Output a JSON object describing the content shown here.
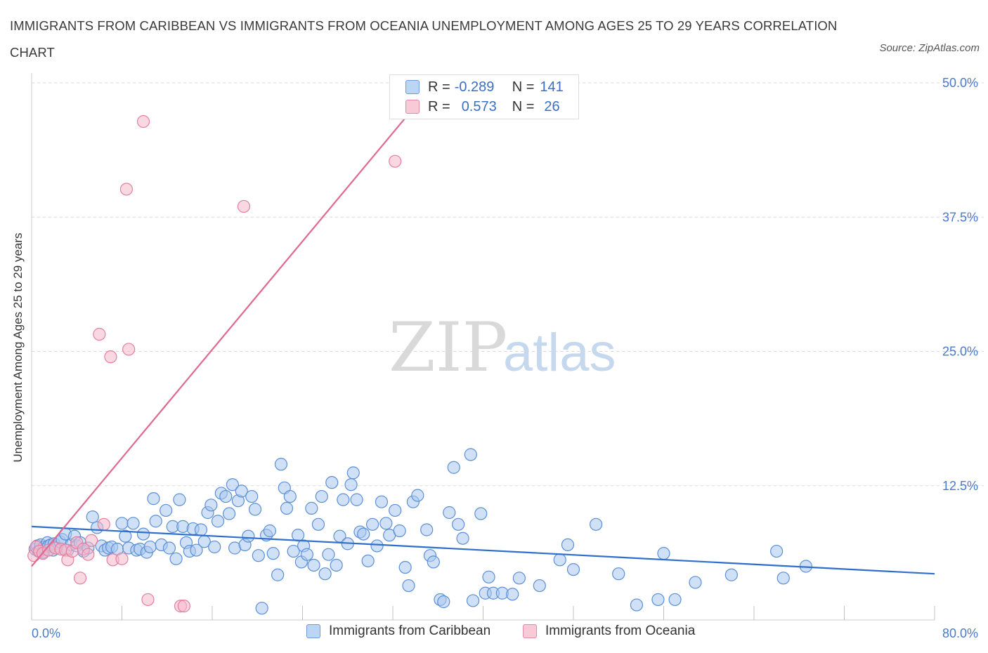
{
  "title": "IMMIGRANTS FROM CARIBBEAN VS IMMIGRANTS FROM OCEANIA UNEMPLOYMENT AMONG AGES 25 TO 29 YEARS CORRELATION CHART",
  "source": "Source: ZipAtlas.com",
  "watermark": {
    "zip": "ZIP",
    "atlas": "atlas"
  },
  "legend": {
    "rows": [
      {
        "r_label": "R =",
        "r_value": "-0.289",
        "n_label": "N =",
        "n_value": "141"
      },
      {
        "r_label": "R =",
        "r_value": "0.573",
        "n_label": "N =",
        "n_value": "26"
      }
    ]
  },
  "colors": {
    "caribbean_fill": "#a9c8f0",
    "caribbean_stroke": "#5b8fd6",
    "caribbean_line": "#2f6fcc",
    "oceania_fill": "#f5b8cb",
    "oceania_stroke": "#e57fa0",
    "oceania_line": "#e06891",
    "tick_label": "#4a7ac9",
    "grid": "#d8d8d8"
  },
  "chart_data": {
    "type": "scatter",
    "title": "IMMIGRANTS FROM CARIBBEAN VS IMMIGRANTS FROM OCEANIA UNEMPLOYMENT AMONG AGES 25 TO 29 YEARS CORRELATION CHART",
    "xlabel": "",
    "ylabel": "Unemployment Among Ages 25 to 29 years",
    "xlim": [
      0,
      80
    ],
    "ylim": [
      0,
      50
    ],
    "x_tick_labels": [
      "0.0%",
      "80.0%"
    ],
    "y_ticks": [
      12.5,
      25.0,
      37.5,
      50.0
    ],
    "y_tick_labels": [
      "12.5%",
      "25.0%",
      "37.5%",
      "50.0%"
    ],
    "grid": true,
    "legend_placement": "bottom",
    "series": [
      {
        "name": "Immigrants from Caribbean",
        "R": -0.289,
        "N": 141,
        "trend": {
          "x": [
            0,
            80
          ],
          "y": [
            8.7,
            4.3
          ]
        },
        "points": [
          [
            0.3,
            6.6
          ],
          [
            0.5,
            6.9
          ],
          [
            0.6,
            6.4
          ],
          [
            0.8,
            7.0
          ],
          [
            1.0,
            6.3
          ],
          [
            1.1,
            6.8
          ],
          [
            1.2,
            6.6
          ],
          [
            1.4,
            7.2
          ],
          [
            1.5,
            6.9
          ],
          [
            1.7,
            7.0
          ],
          [
            1.9,
            6.5
          ],
          [
            2.0,
            7.1
          ],
          [
            2.2,
            6.7
          ],
          [
            2.5,
            7.3
          ],
          [
            2.7,
            7.5
          ],
          [
            3.0,
            8.0
          ],
          [
            3.2,
            6.5
          ],
          [
            3.5,
            7.0
          ],
          [
            3.8,
            7.8
          ],
          [
            4.0,
            6.9
          ],
          [
            4.3,
            7.2
          ],
          [
            4.6,
            6.4
          ],
          [
            5.0,
            6.7
          ],
          [
            5.4,
            9.6
          ],
          [
            5.8,
            8.6
          ],
          [
            6.2,
            6.9
          ],
          [
            6.5,
            6.5
          ],
          [
            6.8,
            6.7
          ],
          [
            7.1,
            6.8
          ],
          [
            7.6,
            6.6
          ],
          [
            8.0,
            9.0
          ],
          [
            8.3,
            7.8
          ],
          [
            8.6,
            6.7
          ],
          [
            9.0,
            9.0
          ],
          [
            9.3,
            6.5
          ],
          [
            9.6,
            6.6
          ],
          [
            9.9,
            8.0
          ],
          [
            10.2,
            6.3
          ],
          [
            10.5,
            6.8
          ],
          [
            10.8,
            11.3
          ],
          [
            11.0,
            9.2
          ],
          [
            11.5,
            7.0
          ],
          [
            11.9,
            10.2
          ],
          [
            12.2,
            6.7
          ],
          [
            12.5,
            8.7
          ],
          [
            12.8,
            5.7
          ],
          [
            13.1,
            11.2
          ],
          [
            13.4,
            8.7
          ],
          [
            13.7,
            7.2
          ],
          [
            14.0,
            6.4
          ],
          [
            14.3,
            8.5
          ],
          [
            14.6,
            6.5
          ],
          [
            15.0,
            8.4
          ],
          [
            15.3,
            7.3
          ],
          [
            15.6,
            10.0
          ],
          [
            15.9,
            10.7
          ],
          [
            16.2,
            6.8
          ],
          [
            16.5,
            9.2
          ],
          [
            16.8,
            11.8
          ],
          [
            17.2,
            11.5
          ],
          [
            17.5,
            9.9
          ],
          [
            17.8,
            12.6
          ],
          [
            18.0,
            6.7
          ],
          [
            18.3,
            11.1
          ],
          [
            18.6,
            12.0
          ],
          [
            18.9,
            7.0
          ],
          [
            19.2,
            7.8
          ],
          [
            19.5,
            11.5
          ],
          [
            19.8,
            10.3
          ],
          [
            20.1,
            6.0
          ],
          [
            20.4,
            1.1
          ],
          [
            20.8,
            7.9
          ],
          [
            21.1,
            8.3
          ],
          [
            21.4,
            6.2
          ],
          [
            21.8,
            4.2
          ],
          [
            22.1,
            14.5
          ],
          [
            22.4,
            12.3
          ],
          [
            22.6,
            10.4
          ],
          [
            22.9,
            11.5
          ],
          [
            23.2,
            6.4
          ],
          [
            23.6,
            7.9
          ],
          [
            23.9,
            5.4
          ],
          [
            24.1,
            6.9
          ],
          [
            24.4,
            6.1
          ],
          [
            24.8,
            10.4
          ],
          [
            25.0,
            5.1
          ],
          [
            25.4,
            8.9
          ],
          [
            25.7,
            11.5
          ],
          [
            26.0,
            4.3
          ],
          [
            26.3,
            6.1
          ],
          [
            26.6,
            12.8
          ],
          [
            27.0,
            5.1
          ],
          [
            27.3,
            7.8
          ],
          [
            27.6,
            11.2
          ],
          [
            28.0,
            7.1
          ],
          [
            28.3,
            12.6
          ],
          [
            28.5,
            13.7
          ],
          [
            28.8,
            11.2
          ],
          [
            29.1,
            8.2
          ],
          [
            29.4,
            8.0
          ],
          [
            29.8,
            5.5
          ],
          [
            30.2,
            8.9
          ],
          [
            30.6,
            6.9
          ],
          [
            31.0,
            11.0
          ],
          [
            31.4,
            9.0
          ],
          [
            31.7,
            7.9
          ],
          [
            32.2,
            10.2
          ],
          [
            32.6,
            8.3
          ],
          [
            33.1,
            4.9
          ],
          [
            33.4,
            3.2
          ],
          [
            33.8,
            11.0
          ],
          [
            34.2,
            11.6
          ],
          [
            35.0,
            8.4
          ],
          [
            35.3,
            6.0
          ],
          [
            35.6,
            5.4
          ],
          [
            36.2,
            1.9
          ],
          [
            36.5,
            1.7
          ],
          [
            37.0,
            10.0
          ],
          [
            37.4,
            14.2
          ],
          [
            37.8,
            8.9
          ],
          [
            38.2,
            7.6
          ],
          [
            38.9,
            15.4
          ],
          [
            39.1,
            1.8
          ],
          [
            39.8,
            9.9
          ],
          [
            40.2,
            2.5
          ],
          [
            40.5,
            4.0
          ],
          [
            40.9,
            2.5
          ],
          [
            41.7,
            2.5
          ],
          [
            42.6,
            2.4
          ],
          [
            43.2,
            3.9
          ],
          [
            45.0,
            3.2
          ],
          [
            46.8,
            5.6
          ],
          [
            47.5,
            7.0
          ],
          [
            48.0,
            4.7
          ],
          [
            50.0,
            8.9
          ],
          [
            52.0,
            4.3
          ],
          [
            53.6,
            1.4
          ],
          [
            55.5,
            1.9
          ],
          [
            56.0,
            6.2
          ],
          [
            57.0,
            1.9
          ],
          [
            58.8,
            3.5
          ],
          [
            62.0,
            4.2
          ],
          [
            66.0,
            6.4
          ],
          [
            66.6,
            3.9
          ],
          [
            68.6,
            5.0
          ]
        ]
      },
      {
        "name": "Immigrants from Oceania",
        "R": 0.573,
        "N": 26,
        "trend": {
          "x": [
            0,
            35.7
          ],
          "y": [
            5.0,
            50.0
          ]
        },
        "points": [
          [
            0.2,
            6.0
          ],
          [
            0.4,
            6.8
          ],
          [
            0.7,
            6.4
          ],
          [
            1.0,
            6.2
          ],
          [
            1.5,
            6.5
          ],
          [
            2.1,
            6.7
          ],
          [
            2.6,
            6.6
          ],
          [
            3.0,
            6.5
          ],
          [
            3.2,
            5.6
          ],
          [
            3.6,
            6.4
          ],
          [
            4.0,
            7.2
          ],
          [
            4.3,
            3.9
          ],
          [
            4.6,
            6.6
          ],
          [
            5.0,
            6.1
          ],
          [
            5.3,
            7.4
          ],
          [
            6.0,
            26.6
          ],
          [
            6.4,
            8.9
          ],
          [
            7.0,
            24.5
          ],
          [
            7.2,
            5.6
          ],
          [
            8.0,
            5.7
          ],
          [
            8.4,
            40.1
          ],
          [
            8.6,
            25.2
          ],
          [
            9.9,
            46.4
          ],
          [
            10.3,
            1.9
          ],
          [
            13.2,
            1.3
          ],
          [
            13.5,
            1.3
          ],
          [
            18.8,
            38.5
          ],
          [
            32.2,
            42.7
          ]
        ]
      }
    ]
  }
}
